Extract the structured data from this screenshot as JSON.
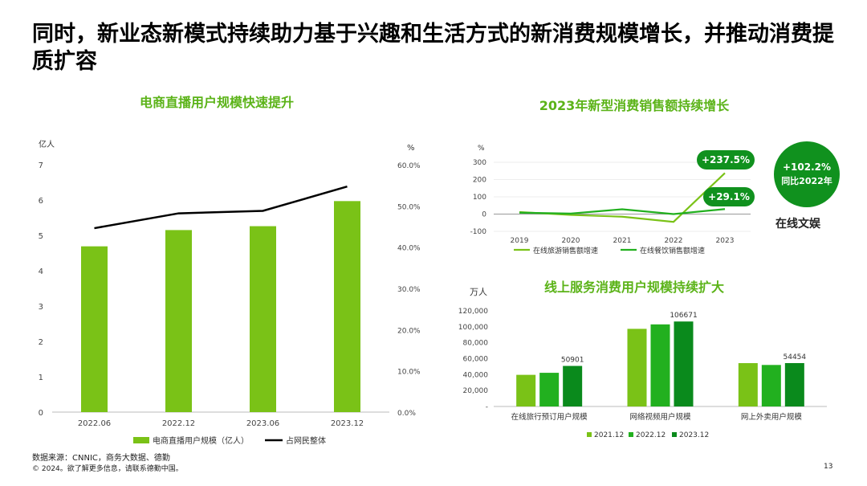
{
  "page": {
    "title": "同时，新业态新模式持续助力基于兴趣和生活方式的新消费规模增长，并推动消费提质扩容",
    "source": "数据来源：CNNIC，商务大数据、德勤",
    "copyright": "© 2024。欲了解更多信息，请联系德勤中国。",
    "page_number": "13"
  },
  "colors": {
    "bright_green": "#7ac217",
    "mid_green": "#22b01f",
    "dark_green": "#0a8a1c",
    "title_green": "#5bb318",
    "badge_green": "#10911e"
  },
  "annotations": {
    "travel_pill": "+237.5%",
    "dining_pill": "+29.1%",
    "badge_value": "+102.2%",
    "badge_caption": "同比2022年",
    "badge_label": "在线文娱"
  },
  "chart_data": [
    {
      "type": "bar",
      "title": "电商直播用户规模快速提升",
      "categories": [
        "2022.06",
        "2022.12",
        "2023.06",
        "2023.12"
      ],
      "series": [
        {
          "name": "电商直播用户规模（亿人）",
          "type": "bar",
          "axis": "left",
          "values": [
            4.69,
            5.15,
            5.26,
            5.97
          ]
        },
        {
          "name": "占网民整体",
          "type": "line",
          "axis": "right",
          "values": [
            44.6,
            48.2,
            48.8,
            54.7
          ]
        }
      ],
      "ylabel": "亿人",
      "ylim": [
        0,
        7
      ],
      "yticks": [
        "0",
        "1",
        "2",
        "3",
        "4",
        "5",
        "6",
        "7"
      ],
      "y2label": "%",
      "y2lim": [
        0,
        60
      ],
      "y2ticks": [
        "0.0%",
        "10.0%",
        "20.0%",
        "30.0%",
        "40.0%",
        "50.0%",
        "60.0%"
      ],
      "legend": "bottom"
    },
    {
      "type": "line",
      "title": "2023年新型消费销售额持续增长",
      "categories": [
        "2019",
        "2020",
        "2021",
        "2022",
        "2023"
      ],
      "series": [
        {
          "name": "在线旅游销售额增速",
          "values": [
            12,
            -5,
            -15,
            -45,
            237.5
          ]
        },
        {
          "name": "在线餐饮销售额增速",
          "values": [
            8,
            3,
            28,
            0,
            29.1
          ]
        }
      ],
      "ylabel": "%",
      "ylim": [
        -100,
        300
      ],
      "yticks": [
        "-100",
        "0",
        "100",
        "200",
        "300"
      ],
      "legend": "bottom"
    },
    {
      "type": "bar",
      "title": "线上服务消费用户规模持续扩大",
      "ylabel": "万人",
      "categories": [
        "在线旅行预订用户规模",
        "网络视频用户规模",
        "网上外卖用户规模"
      ],
      "series": [
        {
          "name": "2021.12",
          "values": [
            39710,
            97471,
            54416
          ]
        },
        {
          "name": "2022.12",
          "values": [
            42272,
            103057,
            52116
          ]
        },
        {
          "name": "2023.12",
          "values": [
            50901,
            106671,
            54454
          ]
        }
      ],
      "data_labels": [
        "50901",
        "106671",
        "54454"
      ],
      "ylim": [
        0,
        120000
      ],
      "yticks": [
        "-",
        "20,000",
        "40,000",
        "60,000",
        "80,000",
        "100,000",
        "120,000"
      ],
      "legend": "bottom"
    }
  ]
}
